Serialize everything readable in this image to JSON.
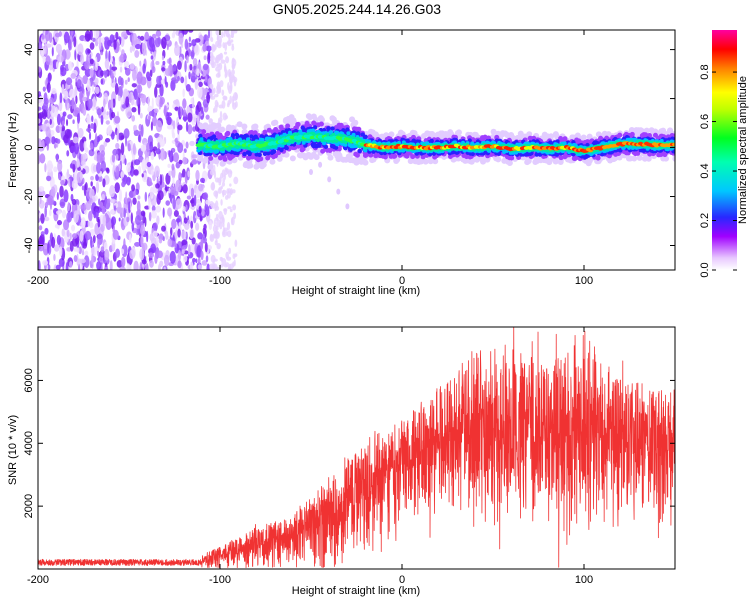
{
  "title": "GN05.2025.244.14.26.G03",
  "chart_data": [
    {
      "type": "heatmap",
      "title": "GN05.2025.244.14.26.G03",
      "xlabel": "Height of straight line (km)",
      "ylabel": "Frequency (Hz)",
      "xlim": [
        -200,
        150
      ],
      "ylim": [
        -50,
        48
      ],
      "x_ticks": [
        -200,
        -100,
        0,
        100
      ],
      "x_tick_labels": [
        "-200",
        "-100",
        "0",
        "100"
      ],
      "y_ticks": [
        -40,
        -20,
        0,
        20,
        40
      ],
      "y_tick_labels": [
        "-40",
        "-20",
        "0",
        "20",
        "40"
      ],
      "colorbar": {
        "label": "Normalized spectral amplitude",
        "range": [
          0,
          0.97
        ],
        "ticks": [
          0,
          0.2,
          0.4,
          0.6,
          0.8
        ],
        "tick_labels": [
          "0.0",
          "0.2",
          "0.4",
          "0.6",
          "0.8"
        ],
        "colors": [
          "#ffffff",
          "#a000ff",
          "#2020ff",
          "#00e0ff",
          "#00ff40",
          "#ffff00",
          "#ff8000",
          "#ff0000",
          "#ff00a0"
        ]
      },
      "noise_region_x": [
        -200,
        -105
      ],
      "ridge": {
        "x": [
          -112,
          -100,
          -90,
          -80,
          -70,
          -60,
          -50,
          -40,
          -30,
          -20,
          -10,
          0,
          10,
          20,
          30,
          40,
          50,
          60,
          70,
          80,
          90,
          100,
          110,
          120,
          130,
          140,
          150
        ],
        "freq": [
          1,
          0.5,
          1.5,
          0.5,
          2,
          4,
          4.5,
          4,
          3.5,
          1,
          0,
          0.5,
          0,
          0,
          0.5,
          0,
          0.5,
          -0.5,
          0,
          -0.5,
          0,
          -1.5,
          0,
          1.5,
          1.5,
          1,
          1
        ]
      }
    },
    {
      "type": "line",
      "xlabel": "Height of straight line (km)",
      "ylabel": "SNR (10 * v/v)",
      "xlim": [
        -200,
        150
      ],
      "ylim": [
        0,
        7700
      ],
      "x_ticks": [
        -200,
        -100,
        0,
        100
      ],
      "x_tick_labels": [
        "-200",
        "-100",
        "0",
        "100"
      ],
      "y_ticks": [
        2000,
        4000,
        6000
      ],
      "y_tick_labels": [
        "2000",
        "4000",
        "6000"
      ],
      "line_color": "#f03232",
      "envelope": {
        "x": [
          -200,
          -150,
          -115,
          -100,
          -80,
          -60,
          -40,
          -20,
          0,
          20,
          40,
          60,
          80,
          100,
          120,
          140,
          150
        ],
        "mean": [
          120,
          130,
          150,
          350,
          650,
          900,
          1400,
          2200,
          3000,
          3700,
          4200,
          3900,
          3800,
          4100,
          3700,
          3500,
          3700
        ],
        "max": [
          330,
          340,
          340,
          700,
          1300,
          1700,
          2900,
          4200,
          4800,
          5800,
          7000,
          7150,
          6400,
          7650,
          6100,
          5850,
          5900
        ]
      }
    }
  ]
}
